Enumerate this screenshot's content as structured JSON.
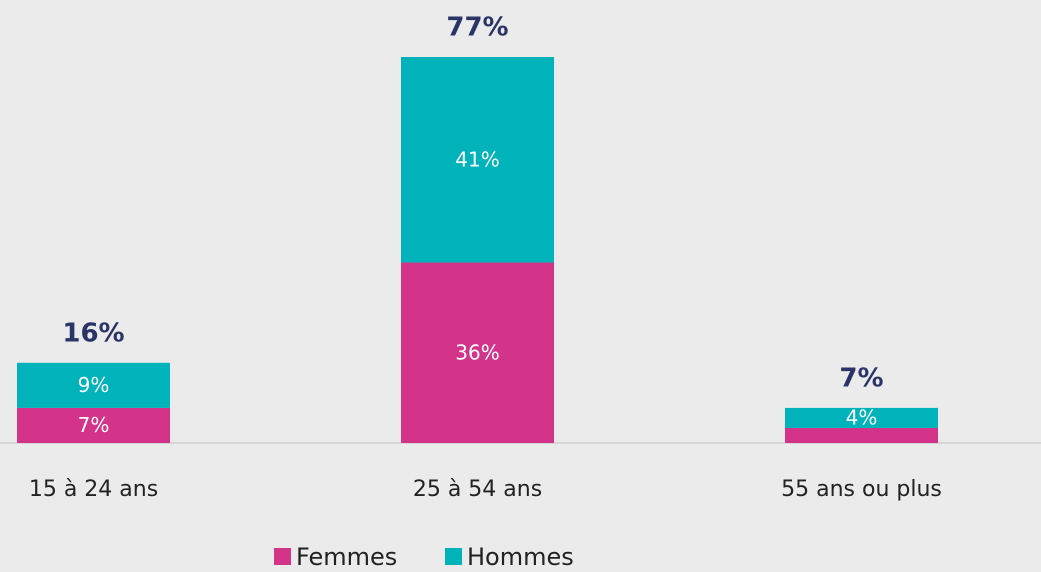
{
  "chart_data": {
    "type": "stacked-bar",
    "categories": [
      "15 à 24 ans",
      "25 à 54 ans",
      "55 ans ou plus"
    ],
    "series": [
      {
        "name": "Femmes",
        "color": "#d4338a",
        "values": [
          7,
          36,
          3
        ],
        "value_labels": [
          "7%",
          "36%",
          null
        ]
      },
      {
        "name": "Hommes",
        "color": "#00b2b9",
        "values": [
          9,
          41,
          4
        ],
        "value_labels": [
          "9%",
          "41%",
          "4%"
        ]
      }
    ],
    "totals": {
      "values": [
        16,
        77,
        7
      ],
      "value_labels": [
        "16%",
        "77%",
        "7%"
      ],
      "color": "#2b3467"
    }
  }
}
